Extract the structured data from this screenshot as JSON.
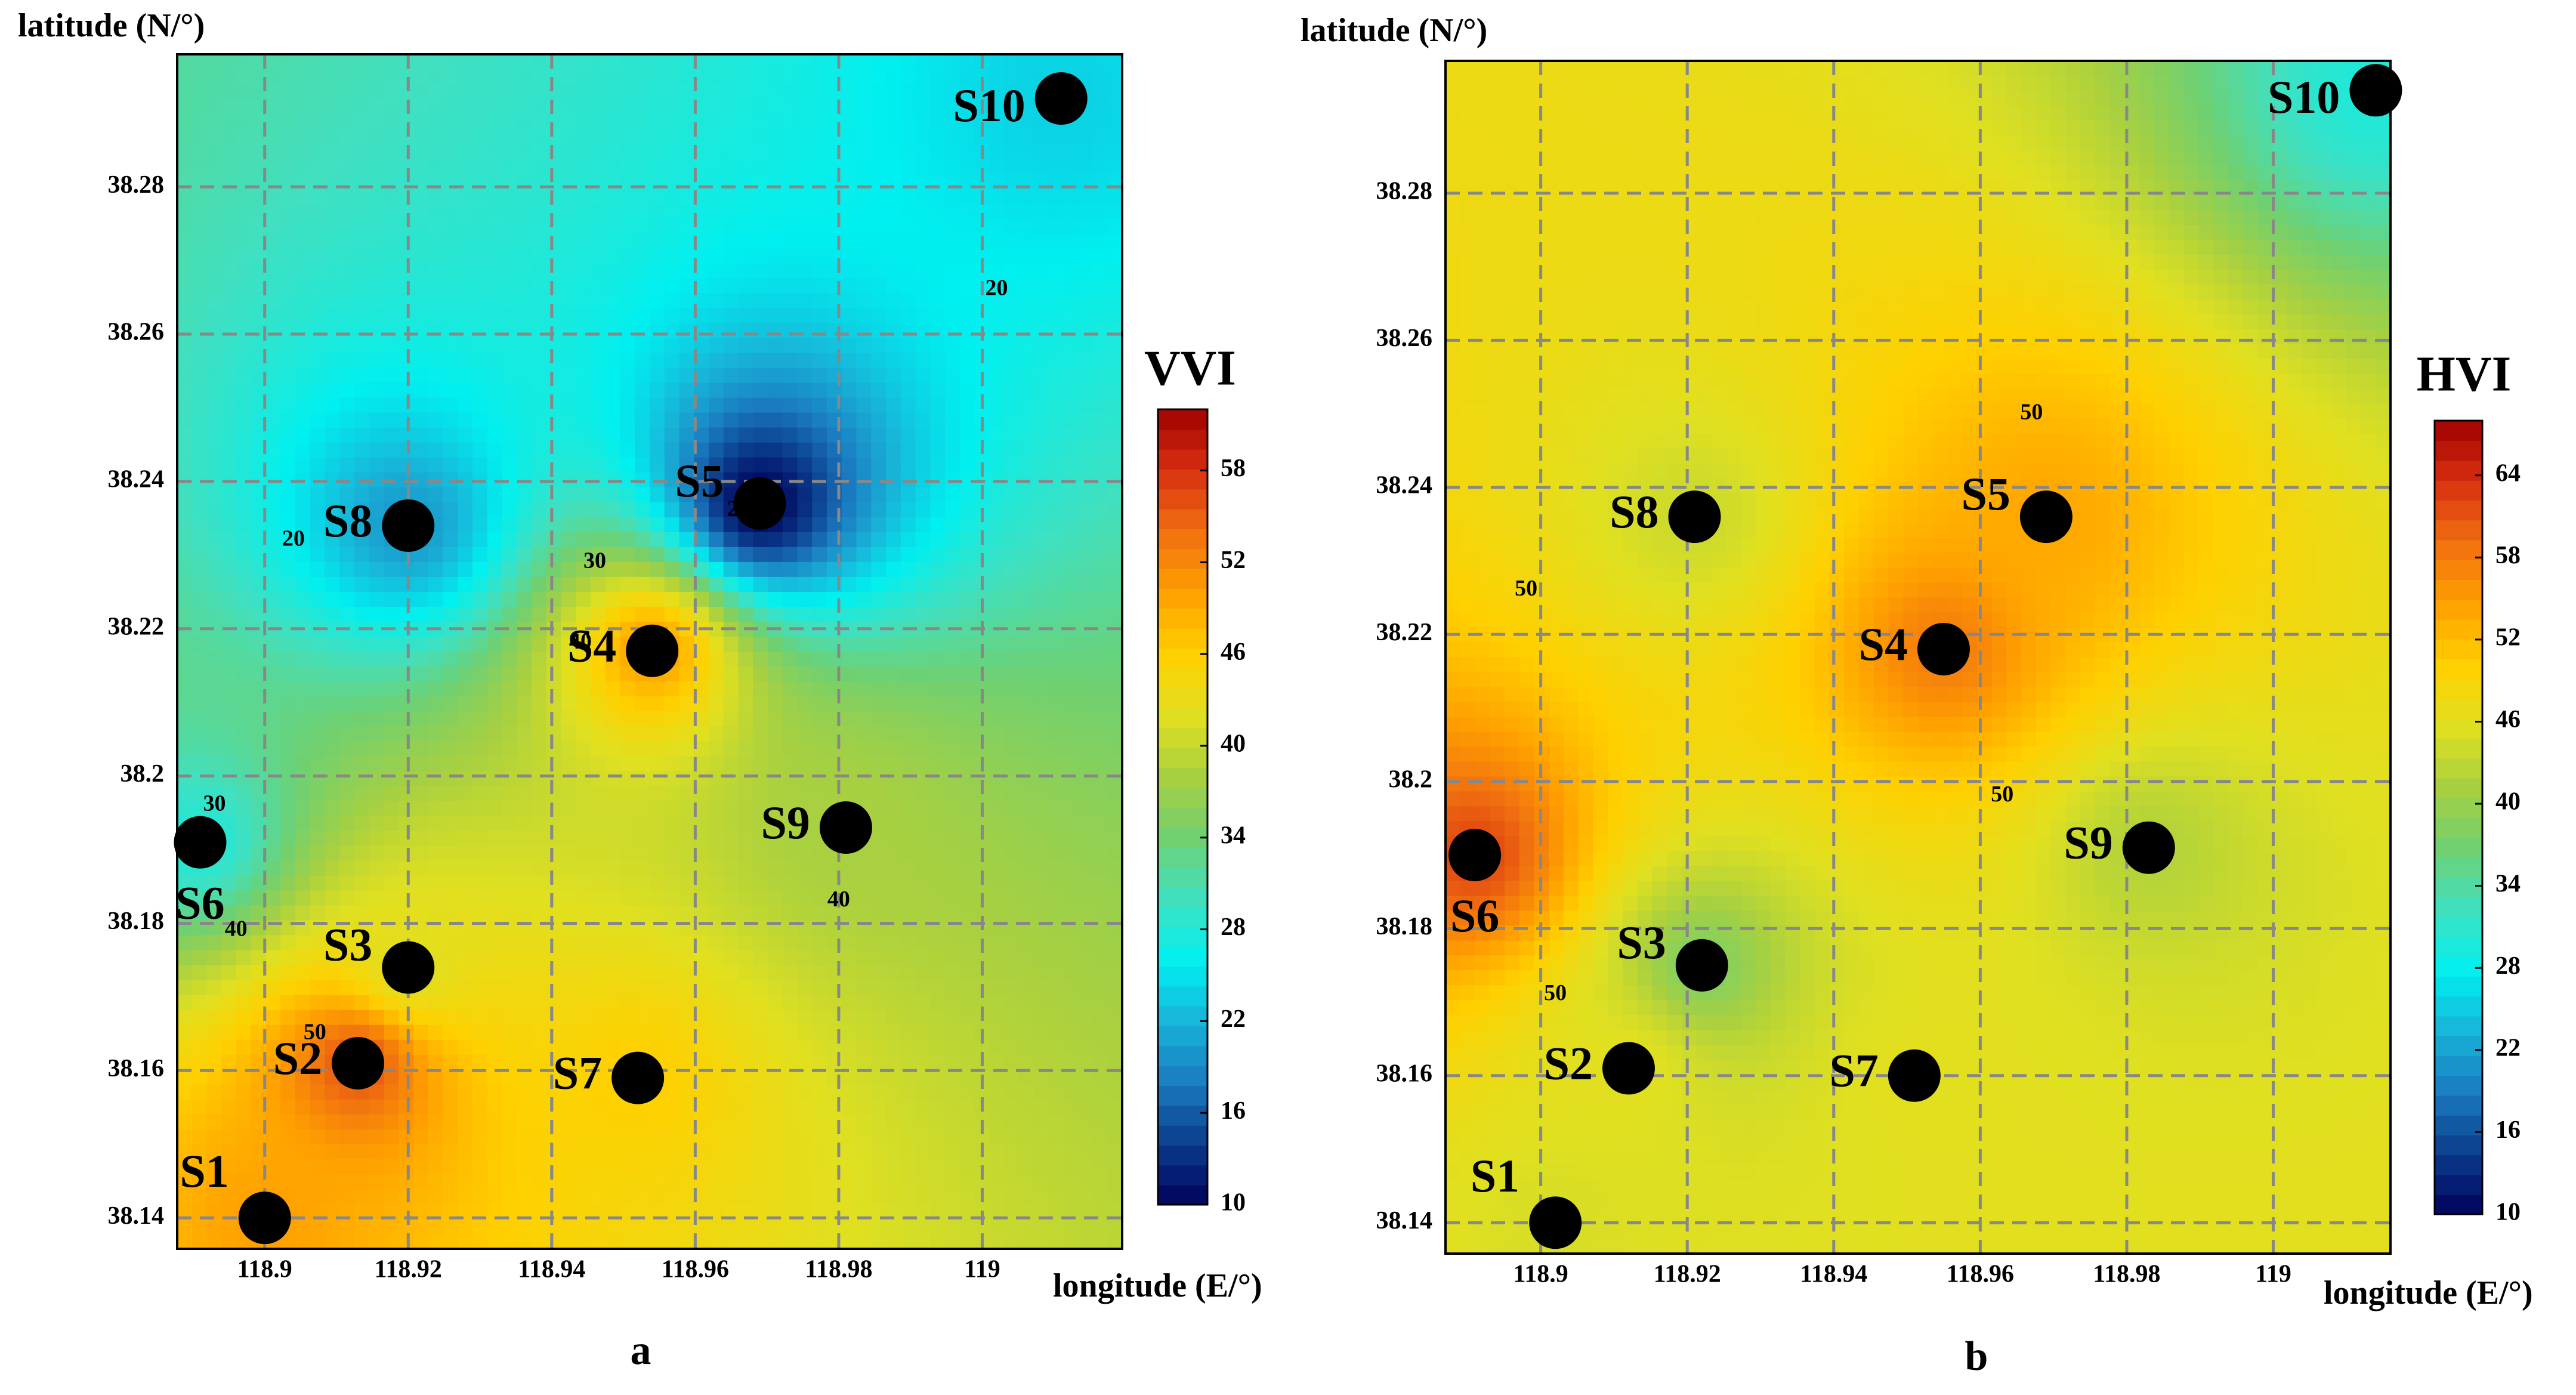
{
  "chart_data": [
    {
      "type": "contour",
      "panel_label": "a",
      "x_label": "longitude (E/°)",
      "y_label": "latitude (N/°)",
      "xlim": [
        118.8878,
        119.0195
      ],
      "ylim": [
        38.1358,
        38.298
      ],
      "xticks": [
        118.9,
        118.92,
        118.94,
        118.96,
        118.98,
        119
      ],
      "yticks": [
        38.14,
        38.16,
        38.18,
        38.2,
        38.22,
        38.24,
        38.26,
        38.28
      ],
      "grid": true,
      "stations": {
        "names": [
          "S1",
          "S2",
          "S3",
          "S4",
          "S5",
          "S6",
          "S7",
          "S8",
          "S9",
          "S10"
        ],
        "x": [
          118.9,
          118.913,
          118.92,
          118.954,
          118.969,
          118.891,
          118.952,
          118.92,
          118.981,
          119.011
        ],
        "y": [
          38.14,
          38.161,
          38.174,
          38.217,
          38.237,
          38.191,
          38.159,
          38.234,
          38.193,
          38.292
        ],
        "values": [
          50,
          56,
          42,
          50,
          10,
          28,
          46,
          20,
          38,
          24
        ]
      },
      "contour_labels": {
        "values": [
          20,
          20,
          20,
          30,
          30,
          40,
          40,
          40,
          50
        ],
        "x": [
          119.002,
          118.904,
          118.966,
          118.946,
          118.893,
          118.944,
          118.98,
          118.896,
          118.907
        ],
        "y": [
          38.266,
          38.232,
          38.236,
          38.229,
          38.196,
          38.218,
          38.183,
          38.179,
          38.165
        ]
      },
      "colorbar": {
        "title": "VVI",
        "clim": [
          10,
          62
        ],
        "ticks": [
          10,
          16,
          22,
          28,
          34,
          40,
          46,
          52,
          58
        ],
        "colorscale": [
          "#00005a",
          "#0b3c8c",
          "#1a7bc0",
          "#18b4d8",
          "#00f0f0",
          "#40e0c0",
          "#70d070",
          "#a8d040",
          "#e0e020",
          "#ffd000",
          "#ffa000",
          "#f07010",
          "#d83010",
          "#a00000"
        ]
      }
    },
    {
      "type": "contour",
      "panel_label": "b",
      "x_label": "longitude (E/°)",
      "y_label": "latitude (N/°)",
      "xlim": [
        118.887,
        119.016
      ],
      "ylim": [
        38.1358,
        38.298
      ],
      "xticks": [
        118.9,
        118.92,
        118.94,
        118.96,
        118.98,
        119
      ],
      "yticks": [
        38.14,
        38.16,
        38.18,
        38.2,
        38.22,
        38.24,
        38.26,
        38.28
      ],
      "grid": true,
      "stations": {
        "names": [
          "S1",
          "S2",
          "S3",
          "S4",
          "S5",
          "S6",
          "S7",
          "S8",
          "S9",
          "S10"
        ],
        "x": [
          118.902,
          118.912,
          118.922,
          118.955,
          118.969,
          118.891,
          118.951,
          118.921,
          118.983,
          119.014
        ],
        "y": [
          38.14,
          38.161,
          38.175,
          38.218,
          38.236,
          38.19,
          38.16,
          38.236,
          38.191,
          38.294
        ],
        "values": [
          45,
          46,
          38,
          58,
          54,
          62,
          46,
          44,
          42,
          30
        ]
      },
      "contour_labels": {
        "values": [
          50,
          50,
          50,
          50
        ],
        "x": [
          118.967,
          118.898,
          118.963,
          118.902
        ],
        "y": [
          38.25,
          38.226,
          38.198,
          38.171
        ]
      },
      "colorbar": {
        "title": "HVI",
        "clim": [
          10,
          68
        ],
        "ticks": [
          10,
          16,
          22,
          28,
          34,
          40,
          46,
          52,
          58,
          64
        ],
        "colorscale": [
          "#00005a",
          "#0b3c8c",
          "#1a7bc0",
          "#18b4d8",
          "#00f0f0",
          "#40e0c0",
          "#70d070",
          "#a8d040",
          "#e0e020",
          "#ffd000",
          "#ffa000",
          "#f07010",
          "#d83010",
          "#a00000"
        ]
      }
    }
  ]
}
